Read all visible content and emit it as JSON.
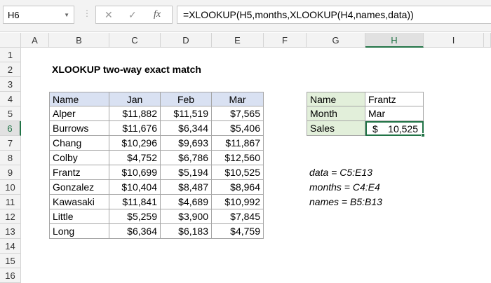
{
  "formula_bar": {
    "name_box": "H6",
    "cancel_icon": "✕",
    "enter_icon": "✓",
    "fx_label": "fx",
    "formula": "=XLOOKUP(H5,months,XLOOKUP(H4,names,data))"
  },
  "columns": [
    "A",
    "B",
    "C",
    "D",
    "E",
    "F",
    "G",
    "H",
    "I"
  ],
  "rows": [
    "1",
    "2",
    "3",
    "4",
    "5",
    "6",
    "7",
    "8",
    "9",
    "10",
    "11",
    "12",
    "13",
    "14",
    "15",
    "16"
  ],
  "selected": {
    "column": "H",
    "row": "6"
  },
  "title": "XLOOKUP two-way exact match",
  "table": {
    "headers": [
      "Name",
      "Jan",
      "Feb",
      "Mar"
    ],
    "header_fill": "#d9e1f2",
    "rows": [
      [
        "Alper",
        "$11,882",
        "$11,519",
        "$7,565"
      ],
      [
        "Burrows",
        "$11,676",
        "$6,344",
        "$5,406"
      ],
      [
        "Chang",
        "$10,296",
        "$9,693",
        "$11,867"
      ],
      [
        "Colby",
        "$4,752",
        "$6,786",
        "$12,560"
      ],
      [
        "Frantz",
        "$10,699",
        "$5,194",
        "$10,525"
      ],
      [
        "Gonzalez",
        "$10,404",
        "$8,487",
        "$8,964"
      ],
      [
        "Kawasaki",
        "$11,841",
        "$4,689",
        "$10,992"
      ],
      [
        "Little",
        "$5,259",
        "$3,900",
        "$7,845"
      ],
      [
        "Long",
        "$6,364",
        "$6,183",
        "$4,759"
      ]
    ]
  },
  "lookup": {
    "label_fill": "#e2efda",
    "rows": [
      {
        "label": "Name",
        "value": "Frantz"
      },
      {
        "label": "Month",
        "value": "Mar"
      },
      {
        "label": "Sales",
        "currency": "$",
        "value": "10,525"
      }
    ]
  },
  "notes": [
    "data = C5:E13",
    "months = C4:E4",
    "names = B5:B13"
  ],
  "accent": "#217346"
}
